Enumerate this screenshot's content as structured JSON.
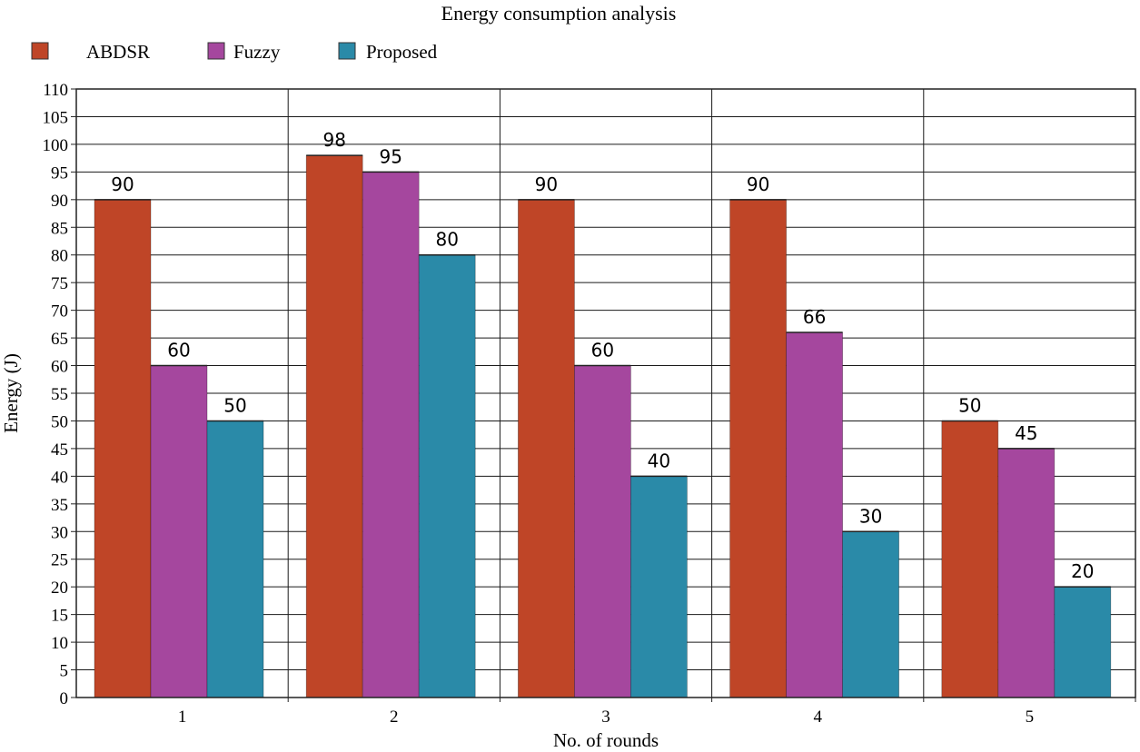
{
  "chart_data": {
    "type": "bar",
    "title": "Energy consumption analysis",
    "xlabel": "No. of rounds",
    "ylabel": "Energy (J)",
    "categories": [
      "1",
      "2",
      "3",
      "4",
      "5"
    ],
    "ylim": [
      0,
      110
    ],
    "ytick_step": 5,
    "grid": true,
    "legend_position": "top-left",
    "series": [
      {
        "name": "ABDSR",
        "color": "#bf4527",
        "values": [
          90,
          98,
          90,
          90,
          50
        ]
      },
      {
        "name": "Fuzzy",
        "color": "#a5479e",
        "values": [
          60,
          95,
          60,
          66,
          45
        ]
      },
      {
        "name": "Proposed",
        "color": "#2a8aa8",
        "values": [
          50,
          80,
          40,
          30,
          20
        ]
      }
    ]
  }
}
